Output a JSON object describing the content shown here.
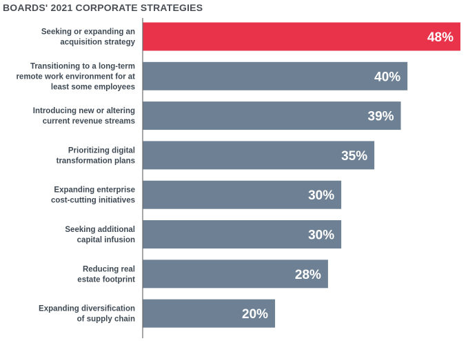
{
  "chart_data": {
    "type": "bar",
    "orientation": "horizontal",
    "title": "BOARDS' 2021 CORPORATE STRATEGIES",
    "categories": [
      [
        "Seeking or expanding an",
        "acquisition strategy"
      ],
      [
        "Transitioning to a long-term",
        "remote work environment for at",
        "least some employees"
      ],
      [
        "Introducing new or altering",
        "current revenue streams"
      ],
      [
        "Prioritizing digital",
        "transformation plans"
      ],
      [
        "Expanding enterprise",
        "cost-cutting initiatives"
      ],
      [
        "Seeking additional",
        "capital infusion"
      ],
      [
        "Reducing real",
        "estate footprint"
      ],
      [
        "Expanding diversification",
        "of supply chain"
      ]
    ],
    "values": [
      48,
      40,
      39,
      35,
      30,
      30,
      28,
      20
    ],
    "value_labels": [
      "48%",
      "40%",
      "39%",
      "35%",
      "30%",
      "30%",
      "28%",
      "20%"
    ],
    "highlight_index": 0,
    "xlim": [
      0,
      48
    ],
    "grid": false,
    "legend": "none",
    "colors": {
      "highlight": "#e8334a",
      "bar": "#6e8194",
      "axis": "#6b6b6b"
    }
  }
}
